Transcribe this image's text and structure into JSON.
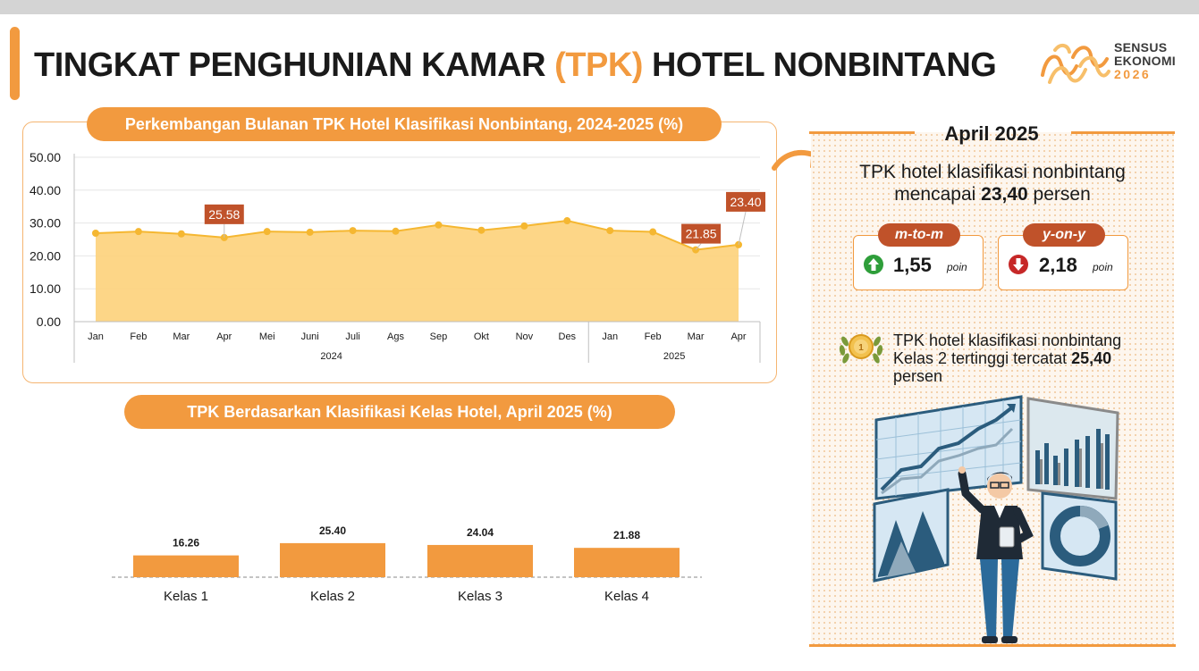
{
  "page": {
    "title_pre": "TINGKAT PENGHUNIAN KAMAR ",
    "title_highlight": "(TPK)",
    "title_post": " HOTEL NONBINTANG"
  },
  "logo": {
    "line1": "SENSUS",
    "line2": "EKONOMI",
    "line3": "2026"
  },
  "colors": {
    "accent": "#f29a3f",
    "area_fill": "#fdd27a",
    "line": "#f5b731",
    "label_box": "#c0522a",
    "bar": "#f29a3f",
    "up": "#2e9e3a",
    "down": "#c62828"
  },
  "line_chart": {
    "title": "Perkembangan Bulanan TPK Hotel Klasifikasi Nonbintang, 2024-2025 (%)"
  },
  "bar_chart": {
    "title": "TPK Berdasarkan Klasifikasi Kelas Hotel, April 2025 (%)"
  },
  "chart_data": [
    {
      "type": "area",
      "title": "Perkembangan Bulanan TPK Hotel Klasifikasi Nonbintang, 2024-2025 (%)",
      "categories": [
        "Jan",
        "Feb",
        "Mar",
        "Apr",
        "Mei",
        "Juni",
        "Juli",
        "Ags",
        "Sep",
        "Okt",
        "Nov",
        "Des",
        "Jan",
        "Feb",
        "Mar",
        "Apr"
      ],
      "year_groups": [
        {
          "label": "2024",
          "count": 12
        },
        {
          "label": "2025",
          "count": 4
        }
      ],
      "values": [
        26.9,
        27.4,
        26.7,
        25.58,
        27.4,
        27.2,
        27.7,
        27.5,
        29.4,
        27.8,
        29.1,
        30.7,
        27.7,
        27.3,
        21.85,
        23.4
      ],
      "data_labels": [
        {
          "index": 3,
          "text": "25.58"
        },
        {
          "index": 14,
          "text": "21.85"
        },
        {
          "index": 15,
          "text": "23.40"
        }
      ],
      "ylim": [
        0,
        50
      ],
      "yticks": [
        "0.00",
        "10.00",
        "20.00",
        "30.00",
        "40.00",
        "50.00"
      ],
      "grid": true,
      "xlabel": "",
      "ylabel": ""
    },
    {
      "type": "bar",
      "title": "TPK Berdasarkan Klasifikasi Kelas Hotel, April 2025 (%)",
      "categories": [
        "Kelas 1",
        "Kelas 2",
        "Kelas 3",
        "Kelas 4"
      ],
      "values": [
        16.26,
        25.4,
        24.04,
        21.88
      ],
      "labels": [
        "16.26",
        "25.40",
        "24.04",
        "21.88"
      ],
      "ylim": [
        0,
        30
      ],
      "grid": false,
      "xlabel": "",
      "ylabel": ""
    }
  ],
  "summary": {
    "date": "April 2025",
    "headline_line1": "TPK hotel klasifikasi nonbintang",
    "headline_pre": "mencapai ",
    "headline_value": "23,40",
    "headline_post": " persen",
    "mtom": {
      "label": "m-to-m",
      "value": "1,55",
      "unit": "poin",
      "direction": "up",
      "icon": "arrow-up-icon"
    },
    "yony": {
      "label": "y-on-y",
      "value": "2,18",
      "unit": "poin",
      "direction": "down",
      "icon": "arrow-down-icon"
    },
    "note_line1": "TPK hotel klasifikasi nonbintang",
    "note_line2_pre": "Kelas 2 tertinggi tercatat ",
    "note_value": "25,40",
    "note_line3": "persen",
    "medal_icon": "medal-icon",
    "illustration": "analyst-dashboard-illustration"
  }
}
